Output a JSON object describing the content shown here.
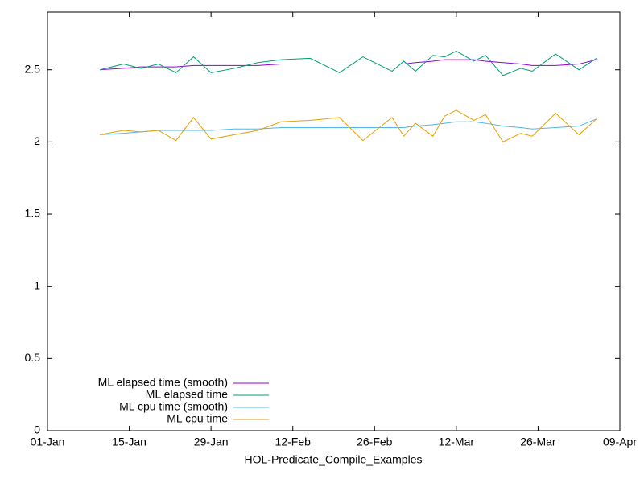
{
  "chart_data": {
    "type": "line",
    "xlabel": "HOL-Predicate_Compile_Examples",
    "x": [
      "10-Jan",
      "14-Jan",
      "17-Jan",
      "20-Jan",
      "23-Jan",
      "26-Jan",
      "29-Jan",
      "02-Feb",
      "06-Feb",
      "10-Feb",
      "15-Feb",
      "20-Feb",
      "24-Feb",
      "01-Mar",
      "03-Mar",
      "05-Mar",
      "08-Mar",
      "10-Mar",
      "12-Mar",
      "15-Mar",
      "17-Mar",
      "20-Mar",
      "23-Mar",
      "25-Mar",
      "29-Mar",
      "02-Apr",
      "05-Apr"
    ],
    "series": [
      {
        "name": "ML elapsed time (smooth)",
        "color": "#9400d3",
        "values": [
          2.5,
          2.51,
          2.52,
          2.52,
          2.52,
          2.53,
          2.53,
          2.53,
          2.53,
          2.54,
          2.54,
          2.54,
          2.54,
          2.54,
          2.54,
          2.55,
          2.56,
          2.57,
          2.57,
          2.57,
          2.56,
          2.55,
          2.54,
          2.53,
          2.53,
          2.54,
          2.57
        ]
      },
      {
        "name": "ML elapsed time",
        "color": "#009e73",
        "values": [
          2.5,
          2.54,
          2.51,
          2.54,
          2.48,
          2.59,
          2.48,
          2.51,
          2.55,
          2.57,
          2.58,
          2.48,
          2.59,
          2.49,
          2.56,
          2.49,
          2.6,
          2.59,
          2.63,
          2.56,
          2.6,
          2.46,
          2.51,
          2.49,
          2.61,
          2.5,
          2.58
        ]
      },
      {
        "name": "ML cpu time (smooth)",
        "color": "#56b4e9",
        "values": [
          2.05,
          2.06,
          2.07,
          2.08,
          2.08,
          2.08,
          2.08,
          2.09,
          2.09,
          2.1,
          2.1,
          2.1,
          2.1,
          2.1,
          2.1,
          2.11,
          2.12,
          2.13,
          2.14,
          2.14,
          2.13,
          2.11,
          2.1,
          2.09,
          2.1,
          2.11,
          2.16
        ]
      },
      {
        "name": "ML cpu time",
        "color": "#e69f00",
        "values": [
          2.05,
          2.08,
          2.07,
          2.08,
          2.01,
          2.17,
          2.02,
          2.05,
          2.08,
          2.14,
          2.15,
          2.17,
          2.01,
          2.17,
          2.04,
          2.13,
          2.04,
          2.18,
          2.22,
          2.15,
          2.19,
          2.0,
          2.06,
          2.04,
          2.2,
          2.05,
          2.16
        ]
      }
    ],
    "xlim": [
      "01-Jan",
      "09-Apr"
    ],
    "xticks": [
      "01-Jan",
      "15-Jan",
      "29-Jan",
      "12-Feb",
      "26-Feb",
      "12-Mar",
      "26-Mar",
      "09-Apr"
    ],
    "ylim": [
      0,
      2.9
    ],
    "yticks": [
      0,
      0.5,
      1,
      1.5,
      2,
      2.5
    ],
    "legend": "bottom-left"
  }
}
